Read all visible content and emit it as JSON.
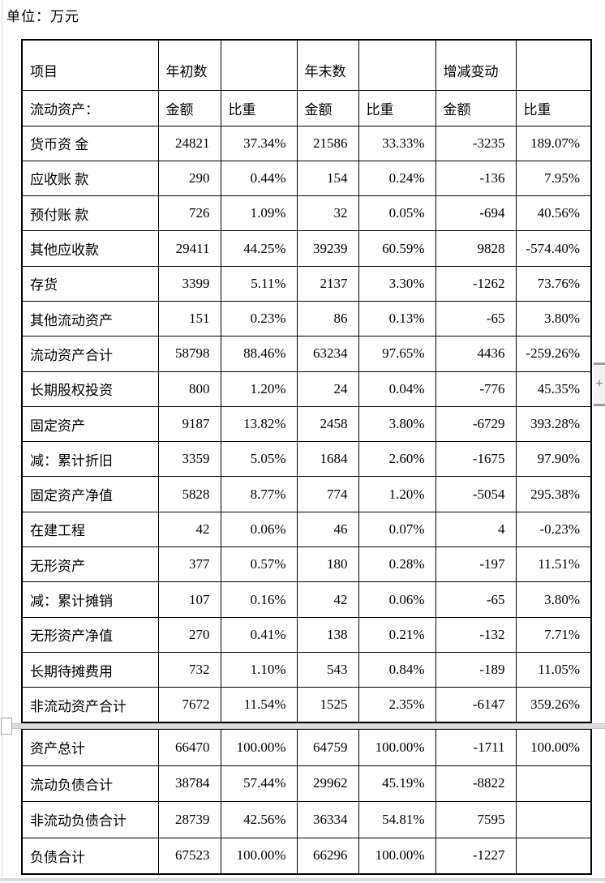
{
  "page": {
    "unit_label": "单位：万元",
    "plus_glyph": "+"
  },
  "table": {
    "header_row1": [
      "项目",
      "年初数",
      "",
      "年末数",
      "",
      "增减变动",
      ""
    ],
    "header_row2": [
      "流动资产：",
      "金额",
      "比重",
      "金额",
      "比重",
      "金额",
      "比重"
    ],
    "section1_rows": [
      [
        "货币资 金",
        "24821",
        "37.34%",
        "21586",
        "33.33%",
        "-3235",
        "189.07%"
      ],
      [
        "应收账 款",
        "290",
        "0.44%",
        "154",
        "0.24%",
        "-136",
        "7.95%"
      ],
      [
        "预付账 款",
        "726",
        "1.09%",
        "32",
        "0.05%",
        "-694",
        "40.56%"
      ],
      [
        "其他应收款",
        "29411",
        "44.25%",
        "39239",
        "60.59%",
        "9828",
        "-574.40%"
      ],
      [
        "存货",
        "3399",
        "5.11%",
        "2137",
        "3.30%",
        "-1262",
        "73.76%"
      ],
      [
        "其他流动资产",
        "151",
        "0.23%",
        "86",
        "0.13%",
        "-65",
        "3.80%"
      ],
      [
        "流动资产合计",
        "58798",
        "88.46%",
        "63234",
        "97.65%",
        "4436",
        "-259.26%"
      ],
      [
        "长期股权投资",
        "800",
        "1.20%",
        "24",
        "0.04%",
        "-776",
        "45.35%"
      ],
      [
        "固定资产",
        "9187",
        "13.82%",
        "2458",
        "3.80%",
        "-6729",
        "393.28%"
      ],
      [
        "减：累计折旧",
        "3359",
        "5.05%",
        "1684",
        "2.60%",
        "-1675",
        "97.90%"
      ],
      [
        "固定资产净值",
        "5828",
        "8.77%",
        "774",
        "1.20%",
        "-5054",
        "295.38%"
      ],
      [
        "在建工程",
        "42",
        "0.06%",
        "46",
        "0.07%",
        "4",
        "-0.23%"
      ],
      [
        "无形资产",
        "377",
        "0.57%",
        "180",
        "0.28%",
        "-197",
        "11.51%"
      ],
      [
        "减：累计摊销",
        "107",
        "0.16%",
        "42",
        "0.06%",
        "-65",
        "3.80%"
      ],
      [
        "无形资产净值",
        "270",
        "0.41%",
        "138",
        "0.21%",
        "-132",
        "7.71%"
      ],
      [
        "长期待摊费用",
        "732",
        "1.10%",
        "543",
        "0.84%",
        "-189",
        "11.05%"
      ],
      [
        "非流动资产合计",
        "7672",
        "11.54%",
        "1525",
        "2.35%",
        "-6147",
        "359.26%"
      ]
    ],
    "section2_rows": [
      [
        "资产总计",
        "66470",
        "100.00%",
        "64759",
        "100.00%",
        "-1711",
        "100.00%"
      ],
      [
        "流动负债合计",
        "38784",
        "57.44%",
        "29962",
        "45.19%",
        "-8822",
        ""
      ],
      [
        "非流动负债合计",
        "28739",
        "42.56%",
        "36334",
        "54.81%",
        "7595",
        ""
      ],
      [
        "负债合计",
        "67523",
        "100.00%",
        "66296",
        "100.00%",
        "-1227",
        ""
      ]
    ]
  }
}
